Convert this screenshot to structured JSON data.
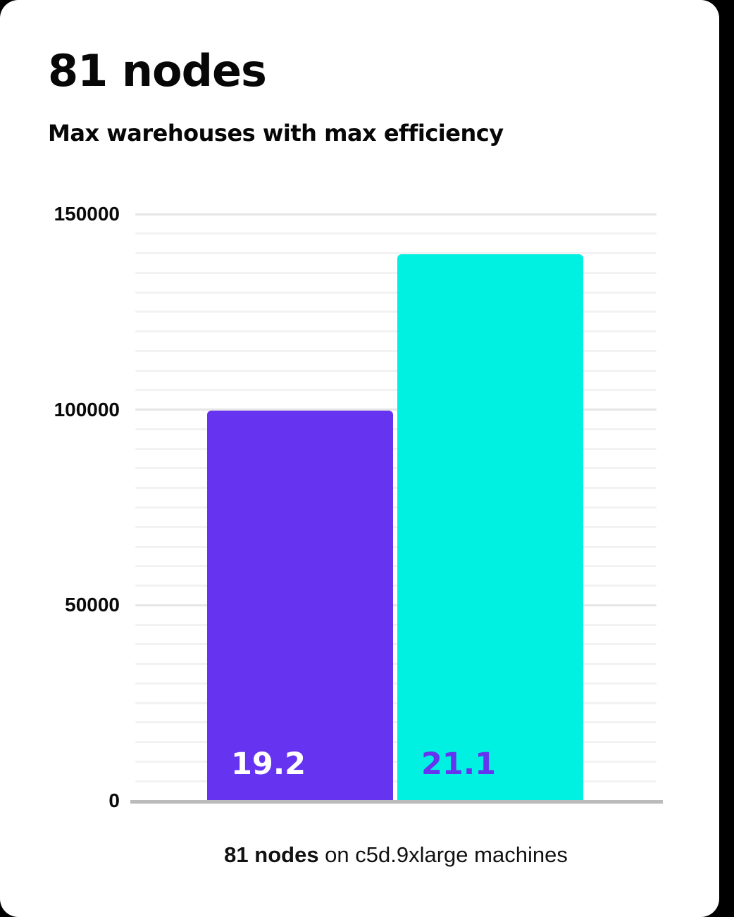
{
  "header": {
    "title": "81 nodes",
    "subtitle": "Max warehouses with max efficiency"
  },
  "caption": {
    "bold": "81 nodes",
    "rest": " on c5d.9xlarge machines"
  },
  "chart_data": {
    "type": "bar",
    "title": "81 nodes",
    "subtitle": "Max warehouses with max efficiency",
    "categories": [
      "19.2",
      "21.1"
    ],
    "values": [
      100000,
      140000
    ],
    "bar_labels": [
      "19.2",
      "21.1"
    ],
    "bar_colors": [
      "#6633f0",
      "#00f1e2"
    ],
    "bar_label_colors": [
      "#ffffff",
      "#6633f0"
    ],
    "xlabel": "",
    "ylabel": "",
    "ylim": [
      0,
      150000
    ],
    "yticks": [
      0,
      50000,
      100000,
      150000
    ],
    "ytick_labels": [
      "0",
      "50000",
      "100000",
      "150000"
    ],
    "minor_gridline_step": 5000,
    "major_gridline_step": 50000,
    "grid": true,
    "legend_position": "none",
    "caption": "81 nodes on c5d.9xlarge machines"
  },
  "colors": {
    "page_background": "#000000",
    "card_background": "#ffffff",
    "text": "#070707",
    "minor_gridline": "#f2f2f2",
    "major_gridline": "#e6e6e6",
    "axis_line": "#bbbbbb",
    "bar_purple": "#6633f0",
    "bar_cyan": "#00f1e2"
  }
}
